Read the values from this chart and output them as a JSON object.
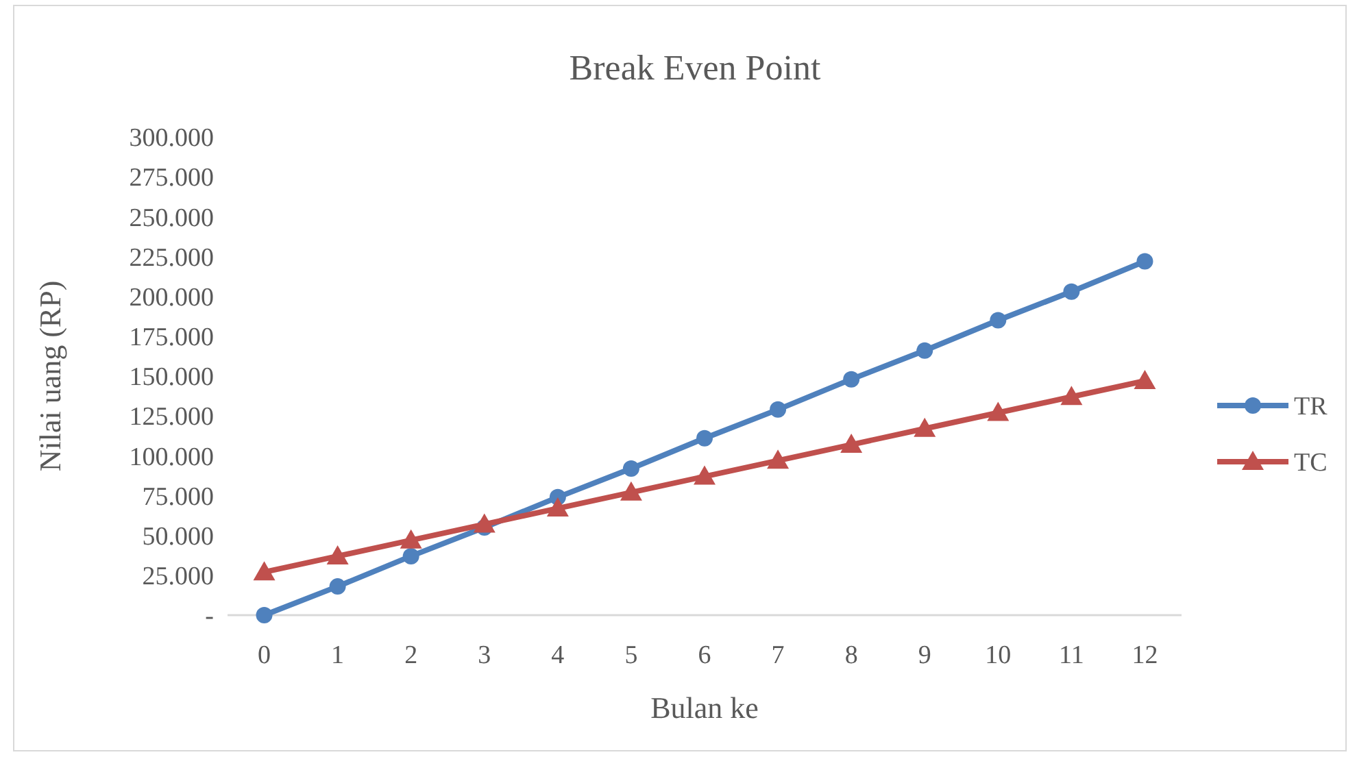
{
  "chart_data": {
    "type": "line",
    "title": "Break Even Point",
    "xlabel": "Bulan ke",
    "ylabel": "Nilai uang (RP)",
    "x": [
      0,
      1,
      2,
      3,
      4,
      5,
      6,
      7,
      8,
      9,
      10,
      11,
      12
    ],
    "xlim": [
      -0.5,
      12.5
    ],
    "xticks": [
      0,
      1,
      2,
      3,
      4,
      5,
      6,
      7,
      8,
      9,
      10,
      11,
      12
    ],
    "series": [
      {
        "name": "TR",
        "color": "#4f81bd",
        "marker": "circle",
        "values": [
          0,
          18000,
          37000,
          55000,
          74000,
          92000,
          111000,
          129000,
          148000,
          166000,
          185000,
          203000,
          222000
        ]
      },
      {
        "name": "TC",
        "color": "#c0504d",
        "marker": "triangle",
        "values": [
          27000,
          37000,
          47000,
          57000,
          67000,
          77000,
          87000,
          97000,
          107000,
          117000,
          127000,
          137000,
          147000
        ]
      }
    ],
    "ylim": [
      0,
      300000
    ],
    "yticks": [
      {
        "value": 0,
        "label": "-"
      },
      {
        "value": 25000,
        "label": "25.000"
      },
      {
        "value": 50000,
        "label": "50.000"
      },
      {
        "value": 75000,
        "label": "75.000"
      },
      {
        "value": 100000,
        "label": "100.000"
      },
      {
        "value": 125000,
        "label": "125.000"
      },
      {
        "value": 150000,
        "label": "150.000"
      },
      {
        "value": 175000,
        "label": "175.000"
      },
      {
        "value": 200000,
        "label": "200.000"
      },
      {
        "value": 225000,
        "label": "225.000"
      },
      {
        "value": 250000,
        "label": "250.000"
      },
      {
        "value": 275000,
        "label": "275.000"
      },
      {
        "value": 300000,
        "label": "300.000"
      }
    ],
    "grid": false,
    "legend": "right",
    "line_style": "solid"
  }
}
